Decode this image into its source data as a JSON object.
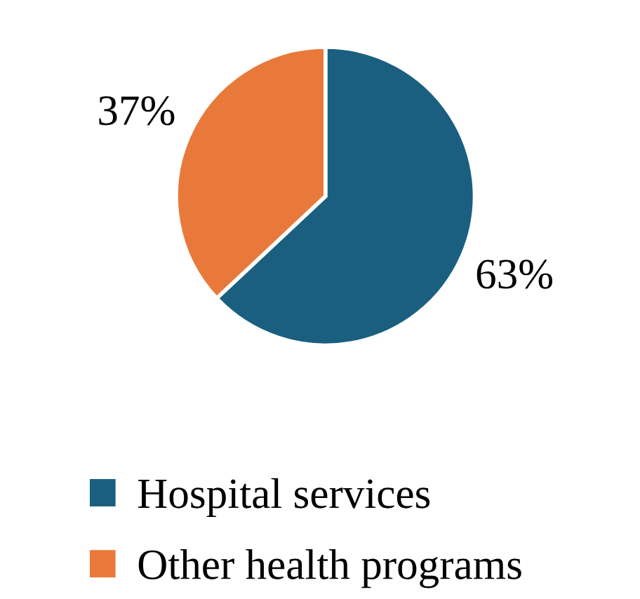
{
  "chart_data": {
    "type": "pie",
    "categories": [
      "Hospital services",
      "Other health programs"
    ],
    "values": [
      63,
      37
    ],
    "colors": [
      "#1a5f7f",
      "#e8793a"
    ],
    "value_labels": [
      "63%",
      "37%"
    ],
    "legend": "bottom"
  }
}
